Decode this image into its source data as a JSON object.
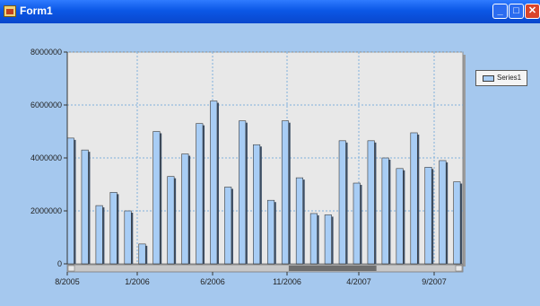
{
  "window": {
    "title": "Form1",
    "icon": "form-app-icon",
    "buttons": {
      "minimize_icon": "minimize-icon",
      "maximize_icon": "maximize-icon",
      "close_icon": "close-icon",
      "minimize_glyph": "_",
      "maximize_glyph": "□",
      "close_glyph": "✕"
    }
  },
  "colors": {
    "form_background": "#a5c8ee",
    "plot_background": "#e8e8e8",
    "bar_fill": "#a8cdf5",
    "bar_border": "#3a3a3a",
    "gridline": "#7fb0dc",
    "scrollbar_thumb": "#6e6e6e"
  },
  "chart_data": {
    "type": "bar",
    "series": [
      {
        "name": "Series1",
        "values": [
          4750000,
          4300000,
          2200000,
          2700000,
          2000000,
          750000,
          5000000,
          3300000,
          4150000,
          5300000,
          6150000,
          2900000,
          5400000,
          4500000,
          2400000,
          5400000,
          3250000,
          1900000,
          1850000,
          4650000,
          3050000,
          4650000,
          4000000,
          3600000,
          4950000,
          3650000,
          3900000,
          3100000
        ]
      }
    ],
    "x_tick_labels": [
      "8/2005",
      "1/2006",
      "6/2006",
      "11/2006",
      "4/2007",
      "9/2007"
    ],
    "y_tick_labels": [
      "0",
      "2000000",
      "4000000",
      "6000000",
      "8000000"
    ],
    "ylim": [
      0,
      8000000
    ],
    "grid": true,
    "legend": "right",
    "scrollbar": {
      "axis": "x",
      "position": 0.73,
      "thumb_fraction": 0.23
    }
  }
}
